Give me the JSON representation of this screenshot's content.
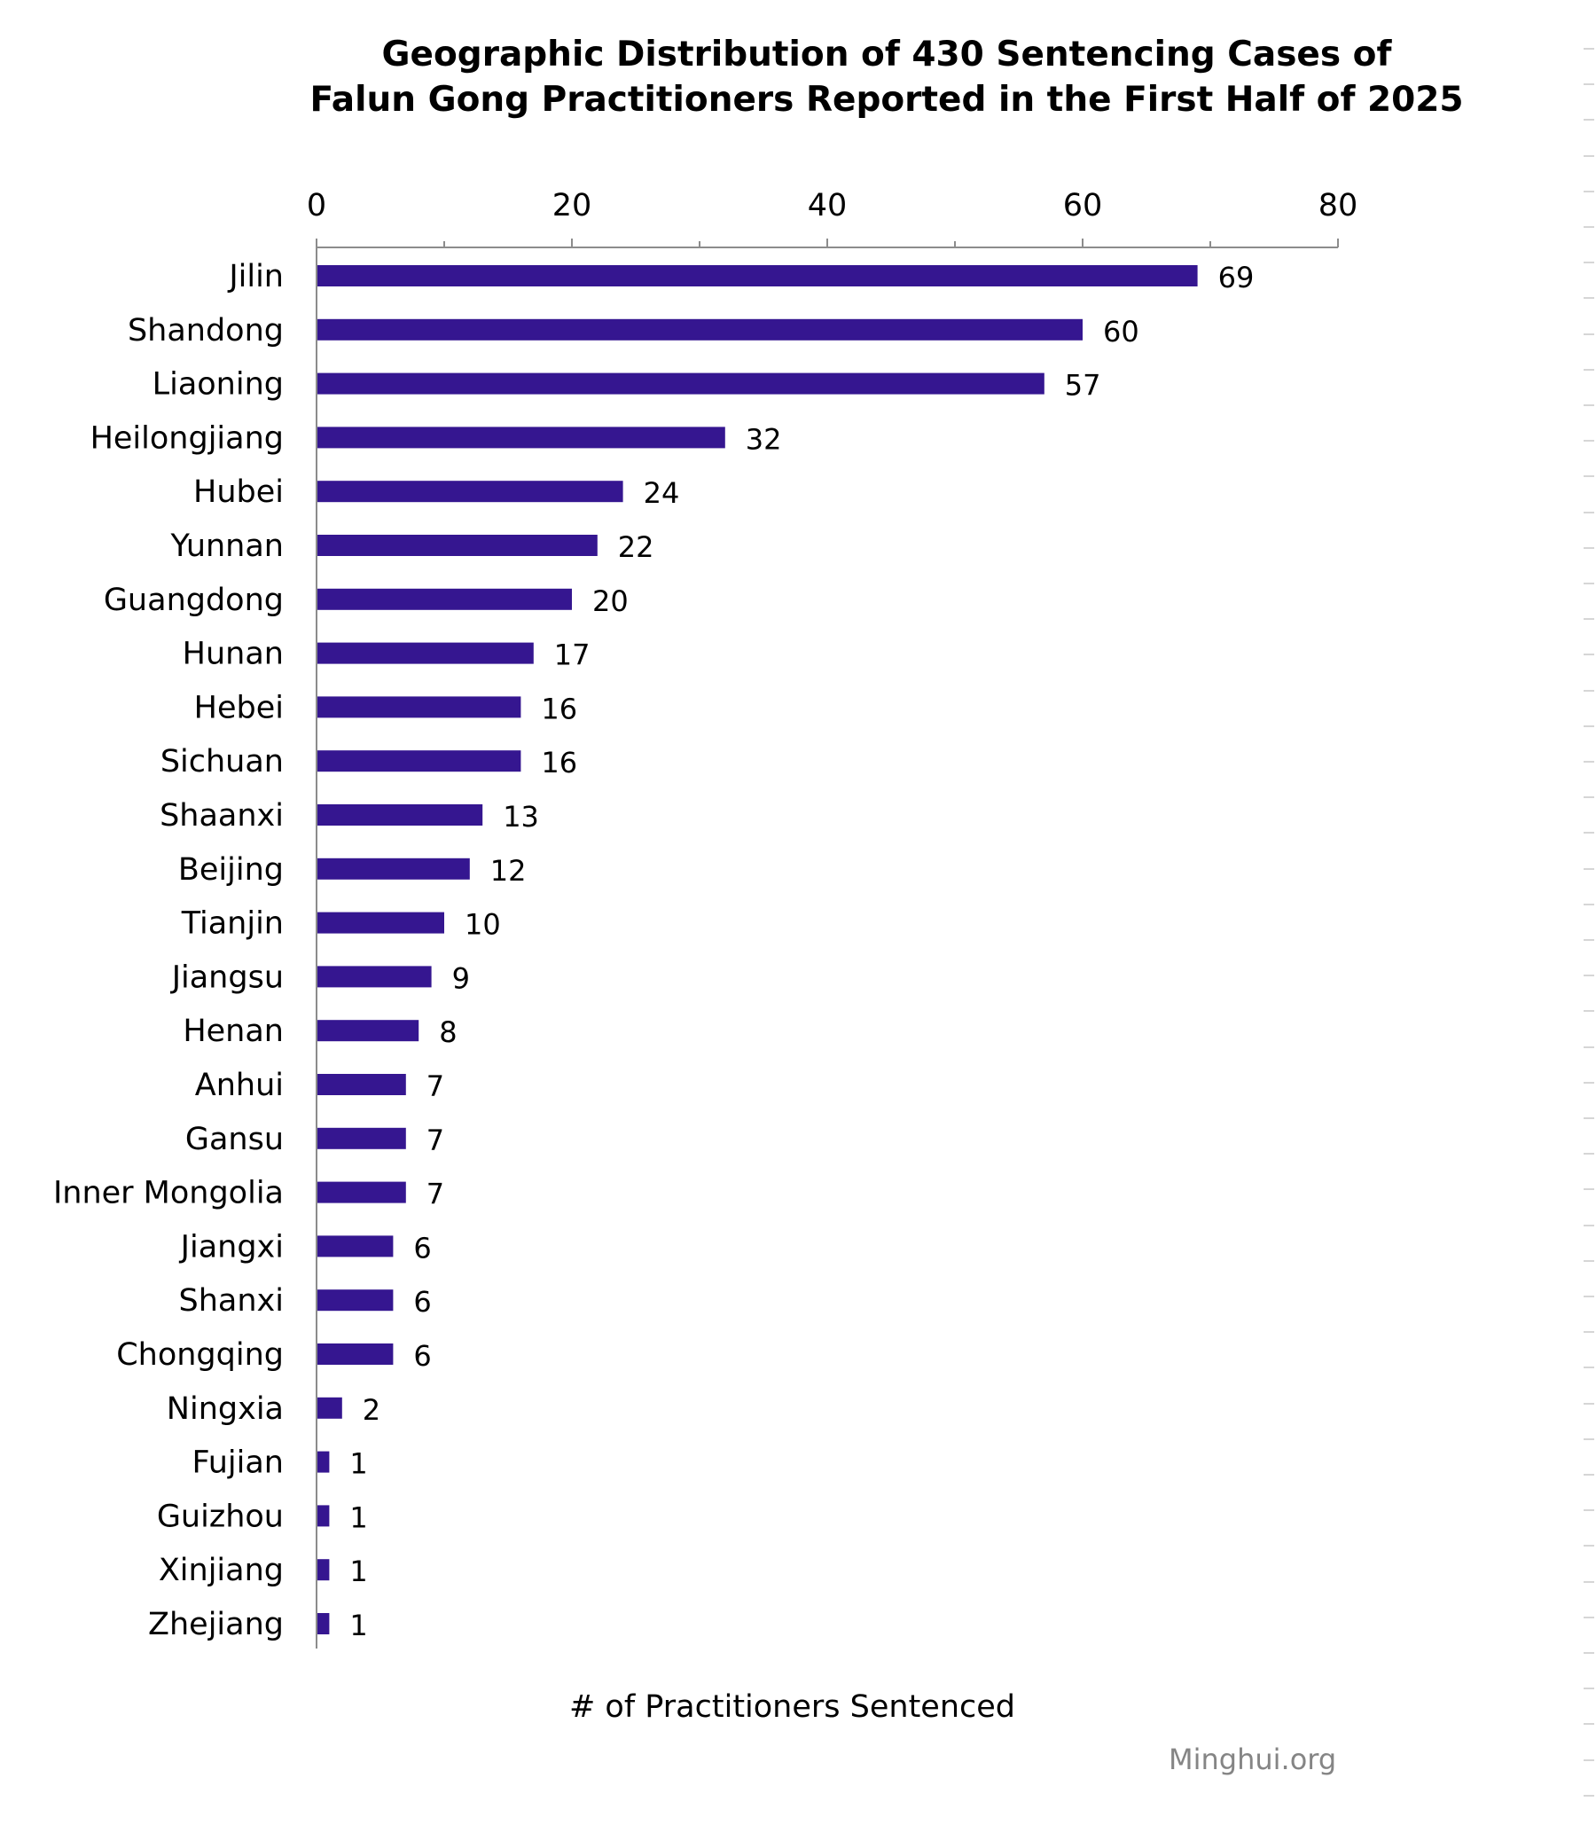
{
  "chart_data": {
    "type": "bar",
    "orientation": "horizontal",
    "title_lines": [
      "Geographic Distribution of 430 Sentencing Cases of",
      "Falun Gong Practitioners Reported in the First Half of 2025"
    ],
    "xlabel": "# of Practitioners Sentenced",
    "xlim": [
      0,
      80
    ],
    "x_ticks": [
      "0",
      "20",
      "40",
      "60",
      "80"
    ],
    "x_axis_position": "top",
    "grid": false,
    "bar_color": "#351690",
    "categories": [
      "Jilin",
      "Shandong",
      "Liaoning",
      "Heilongjiang",
      "Hubei",
      "Yunnan",
      "Guangdong",
      "Hunan",
      "Hebei",
      "Sichuan",
      "Shaanxi",
      "Beijing",
      "Tianjin",
      "Jiangsu",
      "Henan",
      "Anhui",
      "Gansu",
      "Inner Mongolia",
      "Jiangxi",
      "Shanxi",
      "Chongqing",
      "Ningxia",
      "Fujian",
      "Guizhou",
      "Xinjiang",
      "Zhejiang"
    ],
    "values": [
      69,
      60,
      57,
      32,
      24,
      22,
      20,
      17,
      16,
      16,
      13,
      12,
      10,
      9,
      8,
      7,
      7,
      7,
      6,
      6,
      6,
      2,
      1,
      1,
      1,
      1
    ]
  },
  "source": "Minghui.org"
}
